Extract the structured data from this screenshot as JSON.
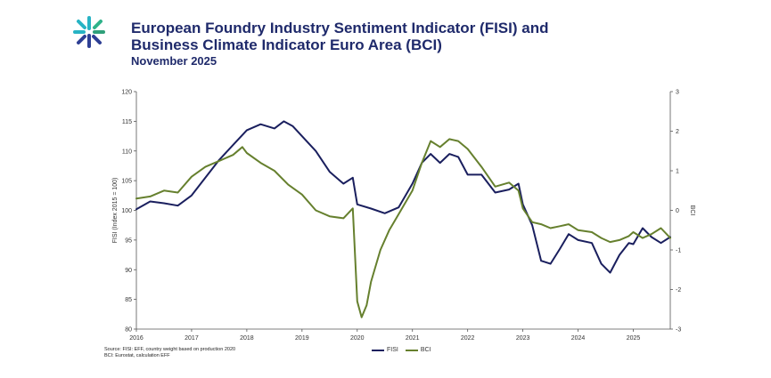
{
  "header": {
    "title_line1": "European Foundry Industry Sentiment Indicator (FISI) and",
    "title_line2": "Business Climate Indicator Euro Area (BCI)",
    "subtitle": "November 2025"
  },
  "logo": {
    "icon": "efi-star-logo-icon",
    "color_top": "#27b3c4",
    "color_bottom": "#2e3f94"
  },
  "sources": {
    "line1": "Source: FISI: EFF, country weight based on production 2020",
    "line2": "BCI: Eurostat, calculation EFF"
  },
  "colors": {
    "fisi": "#1a1f5e",
    "bci": "#66802e",
    "axis": "#555555",
    "text": "#333333"
  },
  "chart_data": {
    "type": "line",
    "title": "European Foundry Industry Sentiment Indicator (FISI) and Business Climate Indicator Euro Area (BCI)",
    "subtitle": "November 2025",
    "ylabel": "FISI (Index 2015 = 100)",
    "y2label": "BCI",
    "ylim": [
      80,
      120
    ],
    "y2lim": [
      -3,
      3
    ],
    "yticks": [
      80,
      85,
      90,
      95,
      100,
      105,
      110,
      115,
      120
    ],
    "y2ticks": [
      -3,
      -2,
      -1,
      0,
      1,
      2,
      3
    ],
    "xlim": [
      2016,
      2025.67
    ],
    "xticks": [
      2016,
      2017,
      2018,
      2019,
      2020,
      2021,
      2022,
      2023,
      2024,
      2025
    ],
    "legend_position": "bottom-center",
    "series": [
      {
        "name": "FISI",
        "axis": "left",
        "x": [
          2016.0,
          2016.25,
          2016.5,
          2016.75,
          2017.0,
          2017.25,
          2017.5,
          2017.75,
          2018.0,
          2018.25,
          2018.5,
          2018.67,
          2018.83,
          2019.0,
          2019.25,
          2019.5,
          2019.75,
          2019.92,
          2020.0,
          2020.25,
          2020.5,
          2020.75,
          2021.0,
          2021.17,
          2021.33,
          2021.5,
          2021.67,
          2021.83,
          2022.0,
          2022.25,
          2022.5,
          2022.75,
          2022.92,
          2023.0,
          2023.17,
          2023.33,
          2023.5,
          2023.67,
          2023.83,
          2024.0,
          2024.25,
          2024.42,
          2024.58,
          2024.75,
          2024.92,
          2025.0,
          2025.17,
          2025.33,
          2025.5,
          2025.67
        ],
        "values": [
          100.2,
          101.5,
          101.2,
          100.8,
          102.5,
          105.5,
          108.5,
          111.0,
          113.5,
          114.5,
          113.8,
          115.0,
          114.2,
          112.5,
          110.0,
          106.5,
          104.5,
          105.5,
          101.0,
          100.3,
          99.5,
          100.5,
          104.5,
          108.0,
          109.5,
          108.0,
          109.5,
          109.0,
          106.0,
          106.0,
          103.0,
          103.5,
          104.5,
          101.0,
          97.5,
          91.5,
          91.0,
          93.5,
          96.0,
          95.0,
          94.5,
          91.0,
          89.5,
          92.5,
          94.5,
          94.3,
          97.0,
          95.5,
          94.5,
          95.5
        ]
      },
      {
        "name": "BCI",
        "axis": "right",
        "x": [
          2016.0,
          2016.25,
          2016.5,
          2016.75,
          2017.0,
          2017.25,
          2017.5,
          2017.75,
          2017.92,
          2018.0,
          2018.25,
          2018.5,
          2018.75,
          2019.0,
          2019.25,
          2019.5,
          2019.75,
          2019.92,
          2020.0,
          2020.08,
          2020.17,
          2020.25,
          2020.42,
          2020.58,
          2020.75,
          2021.0,
          2021.17,
          2021.33,
          2021.5,
          2021.67,
          2021.83,
          2022.0,
          2022.25,
          2022.5,
          2022.75,
          2022.92,
          2023.0,
          2023.17,
          2023.33,
          2023.5,
          2023.67,
          2023.83,
          2024.0,
          2024.25,
          2024.42,
          2024.58,
          2024.75,
          2024.92,
          2025.0,
          2025.17,
          2025.33,
          2025.5,
          2025.67
        ],
        "values": [
          0.3,
          0.35,
          0.5,
          0.45,
          0.85,
          1.1,
          1.25,
          1.4,
          1.6,
          1.45,
          1.2,
          1.0,
          0.65,
          0.4,
          0.0,
          -0.15,
          -0.2,
          0.05,
          -2.3,
          -2.7,
          -2.4,
          -1.8,
          -1.0,
          -0.5,
          -0.1,
          0.5,
          1.2,
          1.75,
          1.6,
          1.8,
          1.75,
          1.55,
          1.1,
          0.6,
          0.7,
          0.5,
          0.05,
          -0.3,
          -0.35,
          -0.45,
          -0.4,
          -0.35,
          -0.5,
          -0.55,
          -0.7,
          -0.8,
          -0.75,
          -0.65,
          -0.55,
          -0.7,
          -0.6,
          -0.45,
          -0.7
        ]
      }
    ]
  }
}
